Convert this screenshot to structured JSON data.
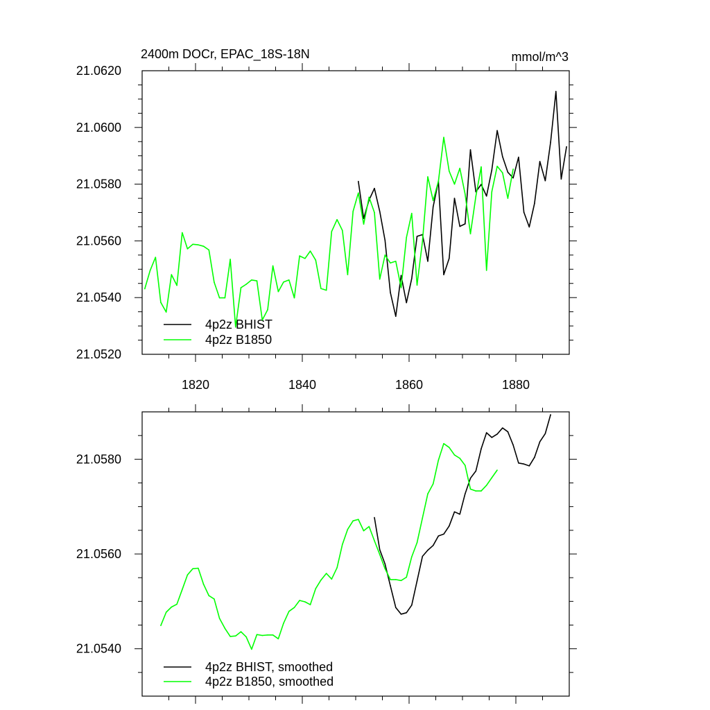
{
  "colors": {
    "bhist": "#000000",
    "b1850": "#00ff00"
  },
  "chart_data": [
    {
      "type": "line",
      "title": "2400m DOCr, EPAC_18S-18N",
      "units": "mmol/m^3",
      "xlim": [
        1810,
        1890
      ],
      "ylim": [
        21.052,
        21.062
      ],
      "xticks": [
        1820,
        1840,
        1860,
        1880
      ],
      "xtick_labels": [
        "1820",
        "1840",
        "1860",
        "1880"
      ],
      "yticks": [
        21.052,
        21.054,
        21.056,
        21.058,
        21.06,
        21.062
      ],
      "ytick_labels": [
        "21.0520",
        "21.0540",
        "21.0560",
        "21.0580",
        "21.0600",
        "21.0620"
      ],
      "grid": false,
      "legend": "bottom-left",
      "series": [
        {
          "name": "4p2z BHIST",
          "color": "#000000",
          "x_start": 1850.5,
          "values": [
            21.0581,
            21.05679,
            21.05744,
            21.05785,
            21.05704,
            21.05602,
            21.05418,
            21.05334,
            21.05478,
            21.05382,
            21.05467,
            21.05616,
            21.05622,
            21.05528,
            21.0572,
            21.0581,
            21.05481,
            21.05538,
            21.0575,
            21.05651,
            21.0566,
            21.05921,
            21.05773,
            21.05799,
            21.05758,
            21.0585,
            21.05989,
            21.05897,
            21.05842,
            21.05822,
            21.05895,
            21.05701,
            21.05649,
            21.05732,
            21.0588,
            21.05812,
            21.05948,
            21.06127,
            21.05818,
            21.05932
          ]
        },
        {
          "name": "4p2z B1850",
          "color": "#00ff00",
          "x_start": 1810.5,
          "values": [
            21.05431,
            21.05496,
            21.05542,
            21.05383,
            21.05349,
            21.05481,
            21.05443,
            21.05629,
            21.05572,
            21.05588,
            21.05586,
            21.05581,
            21.05568,
            21.05454,
            21.05399,
            21.05399,
            21.05535,
            21.05296,
            21.05435,
            21.05447,
            21.05462,
            21.05459,
            21.05321,
            21.05357,
            21.05512,
            21.05421,
            21.05455,
            21.05462,
            21.05399,
            21.05547,
            21.05538,
            21.05564,
            21.05532,
            21.05432,
            21.05426,
            21.05633,
            21.05675,
            21.05637,
            21.05481,
            21.05704,
            21.05769,
            21.05659,
            21.05754,
            21.057,
            21.05465,
            21.0555,
            21.05522,
            21.05528,
            21.05435,
            21.05612,
            21.05697,
            21.05444,
            21.05598,
            21.05826,
            21.05742,
            21.0581,
            21.05965,
            21.05846,
            21.058,
            21.05856,
            21.05765,
            21.05625,
            21.05757,
            21.05861,
            21.05496,
            21.05773,
            21.05863,
            21.0584,
            21.0575,
            21.05853
          ]
        }
      ]
    },
    {
      "type": "line",
      "xlim": [
        1810,
        1890
      ],
      "ylim": [
        21.053,
        21.059
      ],
      "xticks": [
        1820,
        1840,
        1860,
        1880
      ],
      "yticks": [
        21.054,
        21.056,
        21.058
      ],
      "ytick_labels": [
        "21.0540",
        "21.0560",
        "21.0580"
      ],
      "grid": false,
      "legend": "bottom-left",
      "series": [
        {
          "name": "4p2z BHIST, smoothed",
          "color": "#000000",
          "x_start": 1853.5,
          "values": [
            21.05677,
            21.05609,
            21.05579,
            21.05533,
            21.05487,
            21.05473,
            21.05476,
            21.05492,
            21.05543,
            21.05595,
            21.05608,
            21.05618,
            21.05638,
            21.05642,
            21.05659,
            21.05689,
            21.05684,
            21.05727,
            21.0576,
            21.05775,
            21.05822,
            21.05856,
            21.05846,
            21.05853,
            21.05866,
            21.05858,
            21.0583,
            21.05792,
            21.0579,
            21.05786,
            21.05804,
            21.05837,
            21.05854,
            21.05894
          ]
        },
        {
          "name": "4p2z B1850, smoothed",
          "color": "#00ff00",
          "x_start": 1813.5,
          "values": [
            21.05449,
            21.05477,
            21.05488,
            21.05494,
            21.05525,
            21.05556,
            21.05569,
            21.0557,
            21.05536,
            21.05512,
            21.05505,
            21.05464,
            21.05443,
            21.05426,
            21.05427,
            21.05436,
            21.05425,
            21.05399,
            21.0543,
            21.05428,
            21.05429,
            21.05429,
            21.05421,
            21.05454,
            21.05479,
            21.05487,
            21.05502,
            21.05499,
            21.05493,
            21.05527,
            21.05545,
            21.05559,
            21.05547,
            21.05571,
            21.0562,
            21.05652,
            21.0567,
            21.05673,
            21.05649,
            21.05658,
            21.05628,
            21.05599,
            21.05569,
            21.05546,
            21.05546,
            21.05544,
            21.05551,
            21.05594,
            21.05624,
            21.05676,
            21.05727,
            21.05748,
            21.05798,
            21.05833,
            21.05825,
            21.05809,
            21.05802,
            21.05787,
            21.05737,
            21.05733,
            21.05733,
            21.05745,
            21.05761,
            21.05777
          ]
        }
      ]
    }
  ]
}
